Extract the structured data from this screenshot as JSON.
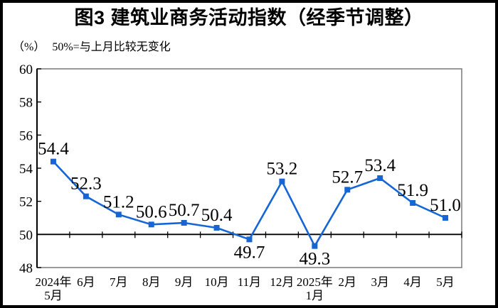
{
  "frame": {
    "title": "图3 建筑业商务活动指数（经季节调整）",
    "unit_label": "（%）",
    "note": "50%=与上月比较无变化"
  },
  "chart_data": {
    "type": "line",
    "title": "图3 建筑业商务活动指数（经季节调整）",
    "unit": "%",
    "annotation": "50%=与上月比较无变化",
    "categories": [
      "2024年\n5月",
      "6月",
      "7月",
      "8月",
      "9月",
      "10月",
      "11月",
      "12月",
      "2025年\n1月",
      "2月",
      "3月",
      "4月",
      "5月"
    ],
    "values": [
      54.4,
      52.3,
      51.2,
      50.6,
      50.7,
      50.4,
      49.7,
      53.2,
      49.3,
      52.7,
      53.4,
      51.9,
      51.0
    ],
    "ylim": [
      48,
      60
    ],
    "ytick_step": 2,
    "ytick_labels": [
      "48",
      "50",
      "52",
      "54",
      "56",
      "58",
      "60"
    ],
    "reference_line": 50,
    "grid": false,
    "legend": "none",
    "line_color": "#1566D4",
    "frame_color": "#808080",
    "axis_color": "#000000",
    "label_below_indices": [
      6,
      8
    ]
  }
}
